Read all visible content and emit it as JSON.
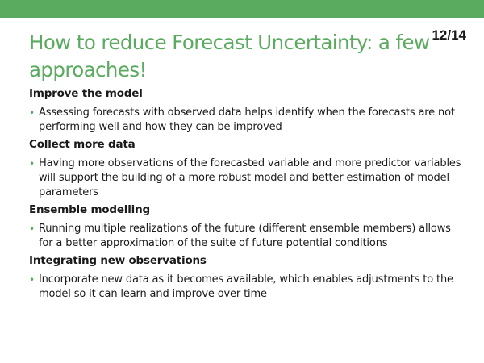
{
  "slide": {
    "page_number": "12/14",
    "title": "How to reduce Forecast Uncertainty: a few approaches!",
    "accent_color": "#5aaa5f",
    "bullet_glyph": "•",
    "sections": [
      {
        "heading": "Improve the model",
        "bullet": "Assessing forecasts with observed data helps identify when the forecasts are not performing well and how they can be improved"
      },
      {
        "heading": "Collect more data",
        "bullet": "Having more observations of the forecasted variable and more predictor variables will support the building of a more robust model and better estimation of model parameters"
      },
      {
        "heading": "Ensemble modelling",
        "bullet": "Running multiple realizations of the future (different ensemble members) allows for a better approximation of the suite of future potential conditions"
      },
      {
        "heading": "Integrating new observations",
        "bullet": "Incorporate new data as it becomes available, which enables adjustments to the model so it can learn and improve over time"
      }
    ]
  }
}
